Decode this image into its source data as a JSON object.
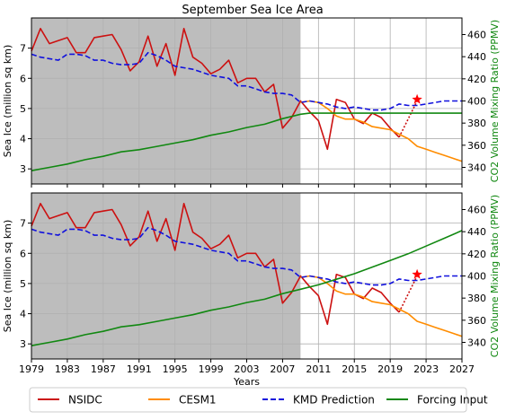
{
  "figure": {
    "title": "September Sea Ice Area"
  },
  "chart_data": [
    {
      "type": "line",
      "panel": "top",
      "title": "September Sea Ice Area",
      "xlabel": "",
      "ylabel": "Sea Ice (million sq km)",
      "y2label": "CO2 Volume Mixing Ratio (PPMV)",
      "xlim": [
        1979,
        2027
      ],
      "ylim": [
        2.5,
        8.0
      ],
      "y2lim": [
        325,
        475
      ],
      "xticks": [],
      "yticks": [
        3,
        4,
        5,
        6,
        7
      ],
      "y2ticks": [
        340,
        360,
        380,
        400,
        420,
        440,
        460
      ],
      "grid": true,
      "shaded_region": {
        "x_start": 1979,
        "x_end": 2009,
        "color": "#bdbdbd"
      },
      "series": [
        {
          "name": "NSIDC",
          "axis": "left",
          "color": "#cc1111",
          "style": "solid",
          "x": [
            1979,
            1980,
            1981,
            1982,
            1983,
            1984,
            1985,
            1986,
            1987,
            1988,
            1989,
            1990,
            1991,
            1992,
            1993,
            1994,
            1995,
            1996,
            1997,
            1998,
            1999,
            2000,
            2001,
            2002,
            2003,
            2004,
            2005,
            2006,
            2007,
            2008,
            2009,
            2010,
            2011,
            2012,
            2013,
            2014,
            2015,
            2016,
            2017,
            2018,
            2019,
            2020
          ],
          "y": [
            6.9,
            7.65,
            7.15,
            7.25,
            7.35,
            6.85,
            6.85,
            7.35,
            7.4,
            7.45,
            6.95,
            6.25,
            6.55,
            7.4,
            6.4,
            7.15,
            6.1,
            7.65,
            6.7,
            6.5,
            6.15,
            6.3,
            6.6,
            5.85,
            6.0,
            6.0,
            5.55,
            5.8,
            4.35,
            4.7,
            5.25,
            4.9,
            4.6,
            3.65,
            5.3,
            5.2,
            4.65,
            4.5,
            4.85,
            4.7,
            4.35,
            4.05
          ]
        },
        {
          "name": "NSIDC (forecast)",
          "axis": "left",
          "color": "#cc1111",
          "style": "dotted",
          "x": [
            2020,
            2022
          ],
          "y": [
            4.05,
            5.25
          ]
        },
        {
          "name": "CESM1",
          "axis": "left",
          "color": "#ff8c00",
          "style": "solid",
          "x": [
            2009,
            2010,
            2011,
            2012,
            2013,
            2014,
            2015,
            2016,
            2017,
            2018,
            2019,
            2020,
            2021,
            2022,
            2023,
            2024,
            2025,
            2026,
            2027
          ],
          "y": [
            5.2,
            5.25,
            5.2,
            5.0,
            4.75,
            4.65,
            4.65,
            4.55,
            4.4,
            4.35,
            4.3,
            4.15,
            4.0,
            3.75,
            3.65,
            3.55,
            3.45,
            3.35,
            3.25
          ]
        },
        {
          "name": "KMD Prediction",
          "axis": "left",
          "color": "#1111dd",
          "style": "dashed",
          "x": [
            1979,
            1980,
            1981,
            1982,
            1983,
            1984,
            1985,
            1986,
            1987,
            1988,
            1989,
            1990,
            1991,
            1992,
            1993,
            1994,
            1995,
            1996,
            1997,
            1998,
            1999,
            2000,
            2001,
            2002,
            2003,
            2004,
            2005,
            2006,
            2007,
            2008,
            2009,
            2010,
            2011,
            2012,
            2013,
            2014,
            2015,
            2016,
            2017,
            2018,
            2019,
            2020,
            2021,
            2022,
            2023,
            2024,
            2025,
            2026,
            2027
          ],
          "y": [
            6.8,
            6.7,
            6.65,
            6.6,
            6.8,
            6.8,
            6.75,
            6.6,
            6.6,
            6.5,
            6.45,
            6.45,
            6.5,
            6.85,
            6.75,
            6.6,
            6.4,
            6.35,
            6.3,
            6.2,
            6.1,
            6.05,
            6.0,
            5.75,
            5.75,
            5.65,
            5.55,
            5.5,
            5.5,
            5.45,
            5.2,
            5.25,
            5.2,
            5.15,
            5.05,
            5.0,
            5.05,
            5.0,
            4.95,
            4.95,
            5.0,
            5.15,
            5.1,
            5.1,
            5.15,
            5.2,
            5.25,
            5.25,
            5.25
          ]
        },
        {
          "name": "Forcing Input",
          "axis": "right",
          "color": "#118811",
          "style": "solid",
          "x": [
            1979,
            1981,
            1983,
            1985,
            1987,
            1989,
            1991,
            1993,
            1995,
            1997,
            1999,
            2001,
            2003,
            2005,
            2007,
            2009,
            2010,
            2012,
            2014,
            2016,
            2018,
            2020,
            2022,
            2024,
            2026,
            2027
          ],
          "y": [
            337,
            340,
            343,
            347,
            350,
            354,
            356,
            359,
            362,
            365,
            369,
            372,
            376,
            379,
            384,
            388,
            389,
            389,
            389,
            389,
            389,
            389,
            389,
            389,
            389,
            389
          ]
        }
      ],
      "markers": [
        {
          "label": "star",
          "x": 2022,
          "y": 5.3,
          "color": "#ff0000"
        }
      ]
    },
    {
      "type": "line",
      "panel": "bottom",
      "xlabel": "Years",
      "ylabel": "Sea Ice (million sq km)",
      "y2label": "CO2 Volume Mixing Ratio (PPMV)",
      "xlim": [
        1979,
        2027
      ],
      "ylim": [
        2.5,
        8.0
      ],
      "y2lim": [
        325,
        475
      ],
      "xticks": [
        1979,
        1983,
        1987,
        1991,
        1995,
        1999,
        2003,
        2007,
        2011,
        2015,
        2019,
        2023,
        2027
      ],
      "yticks": [
        3,
        4,
        5,
        6,
        7
      ],
      "y2ticks": [
        340,
        360,
        380,
        400,
        420,
        440,
        460
      ],
      "grid": true,
      "shaded_region": {
        "x_start": 1979,
        "x_end": 2009,
        "color": "#bdbdbd"
      },
      "series": [
        {
          "name": "NSIDC",
          "axis": "left",
          "color": "#cc1111",
          "style": "solid",
          "x": [
            1979,
            1980,
            1981,
            1982,
            1983,
            1984,
            1985,
            1986,
            1987,
            1988,
            1989,
            1990,
            1991,
            1992,
            1993,
            1994,
            1995,
            1996,
            1997,
            1998,
            1999,
            2000,
            2001,
            2002,
            2003,
            2004,
            2005,
            2006,
            2007,
            2008,
            2009,
            2010,
            2011,
            2012,
            2013,
            2014,
            2015,
            2016,
            2017,
            2018,
            2019,
            2020
          ],
          "y": [
            6.9,
            7.65,
            7.15,
            7.25,
            7.35,
            6.85,
            6.85,
            7.35,
            7.4,
            7.45,
            6.95,
            6.25,
            6.55,
            7.4,
            6.4,
            7.15,
            6.1,
            7.65,
            6.7,
            6.5,
            6.15,
            6.3,
            6.6,
            5.85,
            6.0,
            6.0,
            5.55,
            5.8,
            4.35,
            4.7,
            5.25,
            4.9,
            4.6,
            3.65,
            5.3,
            5.2,
            4.65,
            4.5,
            4.85,
            4.7,
            4.35,
            4.05
          ]
        },
        {
          "name": "NSIDC (forecast)",
          "axis": "left",
          "color": "#cc1111",
          "style": "dotted",
          "x": [
            2020,
            2022
          ],
          "y": [
            4.05,
            5.25
          ]
        },
        {
          "name": "CESM1",
          "axis": "left",
          "color": "#ff8c00",
          "style": "solid",
          "x": [
            2009,
            2010,
            2011,
            2012,
            2013,
            2014,
            2015,
            2016,
            2017,
            2018,
            2019,
            2020,
            2021,
            2022,
            2023,
            2024,
            2025,
            2026,
            2027
          ],
          "y": [
            5.2,
            5.25,
            5.2,
            5.0,
            4.75,
            4.65,
            4.65,
            4.55,
            4.4,
            4.35,
            4.3,
            4.15,
            4.0,
            3.75,
            3.65,
            3.55,
            3.45,
            3.35,
            3.25
          ]
        },
        {
          "name": "KMD Prediction",
          "axis": "left",
          "color": "#1111dd",
          "style": "dashed",
          "x": [
            1979,
            1980,
            1981,
            1982,
            1983,
            1984,
            1985,
            1986,
            1987,
            1988,
            1989,
            1990,
            1991,
            1992,
            1993,
            1994,
            1995,
            1996,
            1997,
            1998,
            1999,
            2000,
            2001,
            2002,
            2003,
            2004,
            2005,
            2006,
            2007,
            2008,
            2009,
            2010,
            2011,
            2012,
            2013,
            2014,
            2015,
            2016,
            2017,
            2018,
            2019,
            2020,
            2021,
            2022,
            2023,
            2024,
            2025,
            2026,
            2027
          ],
          "y": [
            6.8,
            6.7,
            6.65,
            6.6,
            6.8,
            6.8,
            6.75,
            6.6,
            6.6,
            6.5,
            6.45,
            6.45,
            6.5,
            6.85,
            6.75,
            6.6,
            6.4,
            6.35,
            6.3,
            6.2,
            6.1,
            6.05,
            6.0,
            5.75,
            5.75,
            5.65,
            5.55,
            5.5,
            5.5,
            5.45,
            5.2,
            5.25,
            5.2,
            5.15,
            5.05,
            5.0,
            5.05,
            5.0,
            4.95,
            4.95,
            5.0,
            5.15,
            5.1,
            5.1,
            5.15,
            5.2,
            5.25,
            5.25,
            5.25
          ]
        },
        {
          "name": "Forcing Input",
          "axis": "right",
          "color": "#118811",
          "style": "solid",
          "x": [
            1979,
            1981,
            1983,
            1985,
            1987,
            1989,
            1991,
            1993,
            1995,
            1997,
            1999,
            2001,
            2003,
            2005,
            2007,
            2009,
            2011,
            2013,
            2015,
            2017,
            2019,
            2021,
            2023,
            2025,
            2027
          ],
          "y": [
            337,
            340,
            343,
            347,
            350,
            354,
            356,
            359,
            362,
            365,
            369,
            372,
            376,
            379,
            384,
            388,
            392,
            397,
            402,
            408,
            414,
            420,
            427,
            434,
            441
          ]
        }
      ],
      "markers": [
        {
          "label": "star",
          "x": 2022,
          "y": 5.3,
          "color": "#ff0000"
        }
      ]
    }
  ],
  "legend": {
    "position": "bottom",
    "items": [
      {
        "label": "NSIDC",
        "color": "#cc1111",
        "style": "solid"
      },
      {
        "label": "CESM1",
        "color": "#ff8c00",
        "style": "solid"
      },
      {
        "label": "KMD Prediction",
        "color": "#1111dd",
        "style": "dashed"
      },
      {
        "label": "Forcing Input",
        "color": "#118811",
        "style": "solid"
      }
    ]
  }
}
